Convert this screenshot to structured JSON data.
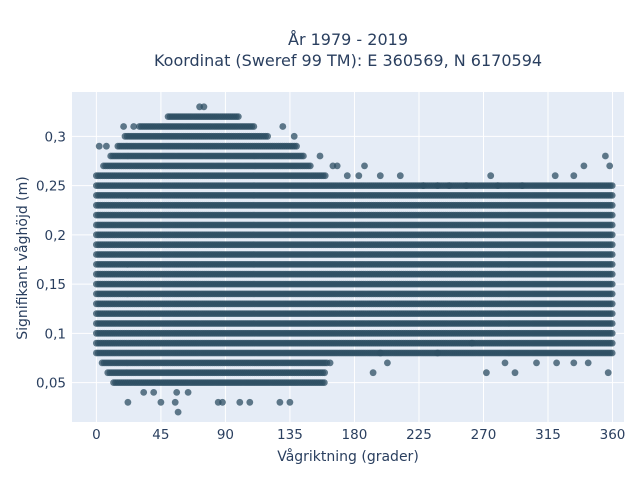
{
  "chart_data": {
    "type": "scatter",
    "title_line1": "År 1979 - 2019",
    "title_line2": "Koordinat (Sweref 99 TM): E 360569, N 6170594",
    "xlabel": "Vågriktning (grader)",
    "ylabel": "Signifikant våghöjd (m)",
    "xlim": [
      -17,
      368
    ],
    "ylim": [
      0.01,
      0.345
    ],
    "xticks": [
      0,
      45,
      90,
      135,
      180,
      225,
      270,
      315,
      360
    ],
    "xtick_labels": [
      "0",
      "45",
      "90",
      "135",
      "180",
      "225",
      "270",
      "315",
      "360"
    ],
    "yticks": [
      0.05,
      0.1,
      0.15,
      0.2,
      0.25,
      0.3
    ],
    "ytick_labels": [
      "0,05",
      "0,1",
      "0,15",
      "0,2",
      "0,25",
      "0,3"
    ],
    "marker_color": "#2d4f63",
    "background_color": "#e5ecf6",
    "grid": true,
    "height_levels": [
      0.02,
      0.03,
      0.04,
      0.05,
      0.06,
      0.07,
      0.08,
      0.09,
      0.1,
      0.11,
      0.12,
      0.13,
      0.14,
      0.15,
      0.16,
      0.17,
      0.18,
      0.19,
      0.2,
      0.21,
      0.22,
      0.23,
      0.24,
      0.25,
      0.26,
      0.27,
      0.28,
      0.29,
      0.3,
      0.31,
      0.32,
      0.33
    ],
    "dense_bands": [
      {
        "y": 0.05,
        "x_from": 12,
        "x_to": 160
      },
      {
        "y": 0.06,
        "x_from": 8,
        "x_to": 160
      },
      {
        "y": 0.07,
        "x_from": 4,
        "x_to": 162
      },
      {
        "y": 0.08,
        "x_from": 0,
        "x_to": 360
      },
      {
        "y": 0.09,
        "x_from": 0,
        "x_to": 360
      },
      {
        "y": 0.1,
        "x_from": 0,
        "x_to": 360
      },
      {
        "y": 0.11,
        "x_from": 0,
        "x_to": 360
      },
      {
        "y": 0.12,
        "x_from": 0,
        "x_to": 360
      },
      {
        "y": 0.13,
        "x_from": 0,
        "x_to": 360
      },
      {
        "y": 0.14,
        "x_from": 0,
        "x_to": 360
      },
      {
        "y": 0.15,
        "x_from": 0,
        "x_to": 360
      },
      {
        "y": 0.16,
        "x_from": 0,
        "x_to": 360
      },
      {
        "y": 0.17,
        "x_from": 0,
        "x_to": 360
      },
      {
        "y": 0.18,
        "x_from": 0,
        "x_to": 360
      },
      {
        "y": 0.19,
        "x_from": 0,
        "x_to": 360
      },
      {
        "y": 0.2,
        "x_from": 0,
        "x_to": 360
      },
      {
        "y": 0.21,
        "x_from": 0,
        "x_to": 360
      },
      {
        "y": 0.22,
        "x_from": 0,
        "x_to": 360
      },
      {
        "y": 0.23,
        "x_from": 0,
        "x_to": 360
      },
      {
        "y": 0.24,
        "x_from": 0,
        "x_to": 360
      },
      {
        "y": 0.25,
        "x_from": 0,
        "x_to": 360
      },
      {
        "y": 0.26,
        "x_from": 0,
        "x_to": 160
      },
      {
        "y": 0.27,
        "x_from": 5,
        "x_to": 150
      },
      {
        "y": 0.28,
        "x_from": 10,
        "x_to": 145
      },
      {
        "y": 0.29,
        "x_from": 15,
        "x_to": 140
      },
      {
        "y": 0.3,
        "x_from": 20,
        "x_to": 120
      },
      {
        "y": 0.31,
        "x_from": 30,
        "x_to": 110
      },
      {
        "y": 0.32,
        "x_from": 50,
        "x_to": 100
      }
    ],
    "scattered_points": [
      {
        "x": 22,
        "y": 0.03
      },
      {
        "x": 45,
        "y": 0.03
      },
      {
        "x": 55,
        "y": 0.03
      },
      {
        "x": 57,
        "y": 0.02
      },
      {
        "x": 85,
        "y": 0.03
      },
      {
        "x": 88,
        "y": 0.03
      },
      {
        "x": 100,
        "y": 0.03
      },
      {
        "x": 107,
        "y": 0.03
      },
      {
        "x": 128,
        "y": 0.03
      },
      {
        "x": 135,
        "y": 0.03
      },
      {
        "x": 33,
        "y": 0.04
      },
      {
        "x": 40,
        "y": 0.04
      },
      {
        "x": 56,
        "y": 0.04
      },
      {
        "x": 64,
        "y": 0.04
      },
      {
        "x": 163,
        "y": 0.07
      },
      {
        "x": 193,
        "y": 0.06
      },
      {
        "x": 198,
        "y": 0.08
      },
      {
        "x": 203,
        "y": 0.07
      },
      {
        "x": 238,
        "y": 0.08
      },
      {
        "x": 262,
        "y": 0.09
      },
      {
        "x": 272,
        "y": 0.06
      },
      {
        "x": 285,
        "y": 0.07
      },
      {
        "x": 292,
        "y": 0.06
      },
      {
        "x": 307,
        "y": 0.07
      },
      {
        "x": 321,
        "y": 0.07
      },
      {
        "x": 333,
        "y": 0.07
      },
      {
        "x": 343,
        "y": 0.07
      },
      {
        "x": 357,
        "y": 0.06
      },
      {
        "x": 2,
        "y": 0.29
      },
      {
        "x": 7,
        "y": 0.29
      },
      {
        "x": 19,
        "y": 0.31
      },
      {
        "x": 26,
        "y": 0.31
      },
      {
        "x": 72,
        "y": 0.33
      },
      {
        "x": 75,
        "y": 0.33
      },
      {
        "x": 130,
        "y": 0.31
      },
      {
        "x": 138,
        "y": 0.3
      },
      {
        "x": 156,
        "y": 0.28
      },
      {
        "x": 165,
        "y": 0.27
      },
      {
        "x": 168,
        "y": 0.27
      },
      {
        "x": 187,
        "y": 0.27
      },
      {
        "x": 198,
        "y": 0.26
      },
      {
        "x": 212,
        "y": 0.26
      },
      {
        "x": 228,
        "y": 0.25
      },
      {
        "x": 238,
        "y": 0.25
      },
      {
        "x": 246,
        "y": 0.25
      },
      {
        "x": 258,
        "y": 0.25
      },
      {
        "x": 275,
        "y": 0.26
      },
      {
        "x": 280,
        "y": 0.25
      },
      {
        "x": 297,
        "y": 0.25
      },
      {
        "x": 320,
        "y": 0.26
      },
      {
        "x": 333,
        "y": 0.26
      },
      {
        "x": 340,
        "y": 0.27
      },
      {
        "x": 355,
        "y": 0.28
      },
      {
        "x": 358,
        "y": 0.27
      },
      {
        "x": 175,
        "y": 0.26
      },
      {
        "x": 183,
        "y": 0.26
      }
    ]
  }
}
